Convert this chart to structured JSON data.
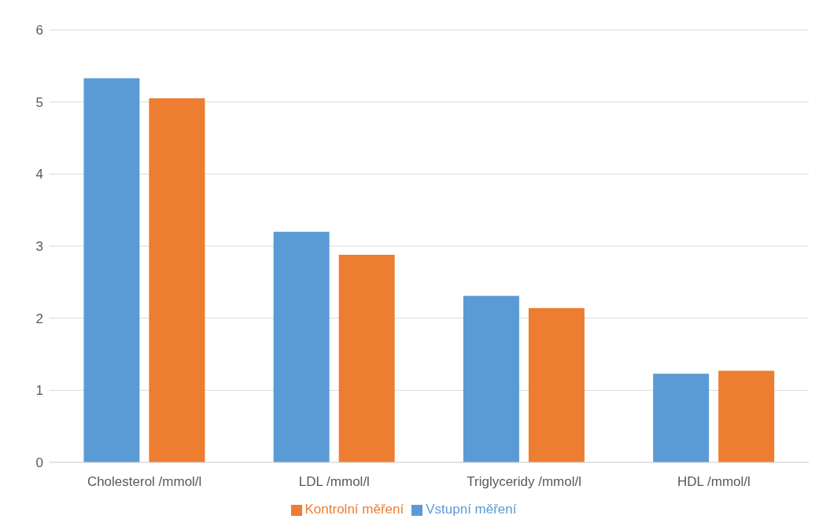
{
  "chart_data": {
    "type": "bar",
    "categories": [
      "Cholesterol /mmol/l",
      "LDL /mmol/l",
      "Triglyceridy /mmol/l",
      "HDL /mmol/l"
    ],
    "series": [
      {
        "name": "Vstupní měření",
        "color": "#5b9bd5",
        "values": [
          5.33,
          3.2,
          2.31,
          1.23
        ]
      },
      {
        "name": "Kontrolní měření",
        "color": "#ed7d31",
        "values": [
          5.05,
          2.88,
          2.14,
          1.27
        ]
      }
    ],
    "ylim": [
      0,
      6
    ],
    "yticks": [
      0,
      1,
      2,
      3,
      4,
      5,
      6
    ],
    "grid": "y",
    "legend": "bottom"
  }
}
